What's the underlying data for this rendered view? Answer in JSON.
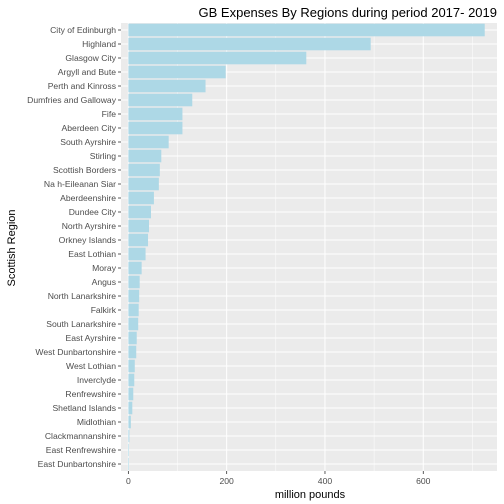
{
  "chart_data": {
    "type": "bar",
    "orientation": "horizontal",
    "title": "GB Expenses By Regions during period 2017- 2019",
    "xlabel": "million pounds",
    "ylabel": "Scottish Region",
    "xlim": [
      -15,
      750
    ],
    "x_ticks": [
      0,
      200,
      400,
      600
    ],
    "x_tick_labels": [
      "0",
      "200",
      "400",
      "600"
    ],
    "grid": true,
    "bar_color": "#add8e6",
    "panel_background": "#ebebeb",
    "grid_color": "#ffffff",
    "categories": [
      "City of Edinburgh",
      "Highland",
      "Glasgow City",
      "Argyll and Bute",
      "Perth and Kinross",
      "Dumfries and Galloway",
      "Fife",
      "Aberdeen City",
      "South Ayrshire",
      "Stirling",
      "Scottish Borders",
      "Na h-Eileanan Siar",
      "Aberdeenshire",
      "Dundee City",
      "North Ayrshire",
      "Orkney Islands",
      "East Lothian",
      "Moray",
      "Angus",
      "North Lanarkshire",
      "Falkirk",
      "South Lanarkshire",
      "East Ayrshire",
      "West Dunbartonshire",
      "West Lothian",
      "Inverclyde",
      "Renfrewshire",
      "Shetland Islands",
      "Midlothian",
      "Clackmannanshire",
      "East Renfrewshire",
      "East Dunbartonshire"
    ],
    "values": [
      725,
      493,
      362,
      198,
      157,
      130,
      110,
      110,
      82,
      67,
      64,
      62,
      52,
      46,
      42,
      40,
      35,
      27,
      23,
      22,
      21,
      20,
      17,
      16,
      13,
      12,
      10,
      8,
      5,
      2,
      1,
      0.5
    ]
  }
}
